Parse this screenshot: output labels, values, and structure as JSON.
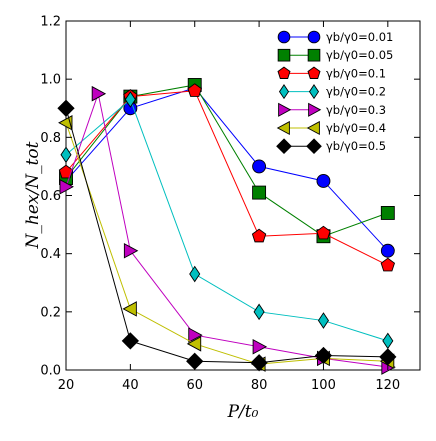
{
  "chart_data": {
    "type": "line",
    "xlabel": "P/t₀",
    "ylabel": "N_hex/N_tot",
    "xlim": [
      20,
      130
    ],
    "ylim": [
      0,
      1.2
    ],
    "xticks": [
      20,
      40,
      60,
      80,
      100,
      120
    ],
    "yticks": [
      0.0,
      0.2,
      0.4,
      0.6,
      0.8,
      1.0,
      1.2
    ],
    "xtick_labels": [
      "20",
      "40",
      "60",
      "80",
      "100",
      "120"
    ],
    "ytick_labels": [
      "0.0",
      "0.2",
      "0.4",
      "0.6",
      "0.8",
      "1.0",
      "1.2"
    ],
    "grid": false,
    "legend_position": "top-right",
    "series": [
      {
        "name": "γb/γ0=0.01",
        "color": "#0000ff",
        "marker": "circle",
        "x": [
          20,
          40,
          60,
          80,
          100,
          120
        ],
        "y": [
          0.65,
          0.9,
          0.97,
          0.7,
          0.65,
          0.41
        ]
      },
      {
        "name": "γb/γ0=0.05",
        "color": "#008000",
        "marker": "square",
        "x": [
          20,
          40,
          60,
          80,
          100,
          120
        ],
        "y": [
          0.66,
          0.94,
          0.98,
          0.61,
          0.46,
          0.54
        ]
      },
      {
        "name": "γb/γ0=0.1",
        "color": "#ff0000",
        "marker": "pentagon",
        "x": [
          20,
          40,
          60,
          80,
          100,
          120
        ],
        "y": [
          0.68,
          0.94,
          0.96,
          0.46,
          0.47,
          0.36
        ]
      },
      {
        "name": "γb/γ0=0.2",
        "color": "#00bfbf",
        "marker": "diamond",
        "x": [
          20,
          40,
          60,
          80,
          100,
          120
        ],
        "y": [
          0.74,
          0.93,
          0.33,
          0.2,
          0.17,
          0.1
        ]
      },
      {
        "name": "γb/γ0=0.3",
        "color": "#bf00bf",
        "marker": "triangle-right",
        "x": [
          20,
          30,
          40,
          60,
          80,
          100,
          120
        ],
        "y": [
          0.63,
          0.95,
          0.41,
          0.12,
          0.08,
          0.04,
          0.01
        ]
      },
      {
        "name": "γb/γ0=0.4",
        "color": "#bfbf00",
        "marker": "triangle-left",
        "x": [
          20,
          40,
          60,
          80,
          100,
          120
        ],
        "y": [
          0.85,
          0.21,
          0.09,
          0.02,
          0.04,
          0.03
        ]
      },
      {
        "name": "γb/γ0=0.5",
        "color": "#000000",
        "marker": "diamond-large",
        "x": [
          20,
          40,
          60,
          80,
          100,
          120
        ],
        "y": [
          0.9,
          0.1,
          0.03,
          0.025,
          0.05,
          0.045
        ]
      }
    ]
  }
}
